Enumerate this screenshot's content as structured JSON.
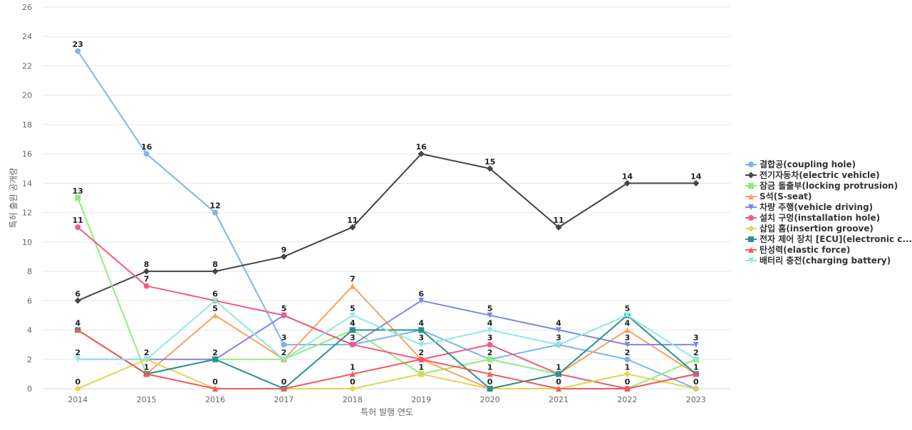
{
  "chart_data": {
    "type": "line",
    "title": "",
    "xlabel": "특허 발행 연도",
    "ylabel": "특허 출원 공개량",
    "ylim": [
      0,
      26
    ],
    "yticks": [
      0,
      2,
      4,
      6,
      8,
      10,
      12,
      14,
      16,
      18,
      20,
      22,
      24,
      26
    ],
    "categories": [
      "2014",
      "2015",
      "2016",
      "2017",
      "2018",
      "2019",
      "2020",
      "2021",
      "2022",
      "2023"
    ],
    "legend_position": "right",
    "series": [
      {
        "name": "결합공(coupling hole)",
        "color": "#7cb5ec",
        "marker": "circle",
        "values": [
          23,
          16,
          12,
          3,
          3,
          4,
          2,
          3,
          2,
          0
        ]
      },
      {
        "name": "전기자동차(electric vehicle)",
        "color": "#434348",
        "marker": "diamond",
        "values": [
          6,
          8,
          8,
          9,
          11,
          16,
          15,
          11,
          14,
          14
        ]
      },
      {
        "name": "잠금 돌출부(locking protrusion)",
        "color": "#90ed7d",
        "marker": "square",
        "values": [
          13,
          1,
          2,
          2,
          4,
          1,
          2,
          1,
          0,
          2
        ]
      },
      {
        "name": "S석(S-seat)",
        "color": "#f7a35c",
        "marker": "triangle",
        "values": [
          4,
          1,
          5,
          2,
          7,
          2,
          0,
          1,
          4,
          1
        ]
      },
      {
        "name": "차량 주행(vehicle driving)",
        "color": "#8085e9",
        "marker": "triangle-down",
        "values": [
          2,
          2,
          2,
          5,
          3,
          6,
          5,
          4,
          3,
          3
        ]
      },
      {
        "name": "설치 구멍(installation hole)",
        "color": "#f15c80",
        "marker": "circle",
        "values": [
          11,
          7,
          6,
          5,
          3,
          2,
          3,
          1,
          0,
          1
        ]
      },
      {
        "name": "삽입 홈(insertion groove)",
        "color": "#e4d354",
        "marker": "diamond",
        "values": [
          0,
          2,
          0,
          0,
          0,
          1,
          0,
          0,
          1,
          0
        ]
      },
      {
        "name": "전자 제어 장치 [ECU](electronic c...",
        "color": "#2b908f",
        "marker": "square",
        "values": [
          4,
          1,
          2,
          0,
          4,
          4,
          0,
          1,
          5,
          1
        ]
      },
      {
        "name": "탄성력(elastic force)",
        "color": "#f45b5b",
        "marker": "triangle",
        "values": [
          4,
          1,
          0,
          0,
          1,
          2,
          1,
          0,
          0,
          1
        ]
      },
      {
        "name": "배터리 충전(charging battery)",
        "color": "#91e8e1",
        "marker": "triangle-down",
        "values": [
          2,
          2,
          6,
          2,
          5,
          3,
          4,
          3,
          5,
          2
        ]
      }
    ],
    "data_labels": [
      {
        "text": "23",
        "x": "2014",
        "y": 23
      },
      {
        "text": "13",
        "x": "2014",
        "y": 13
      },
      {
        "text": "11",
        "x": "2014",
        "y": 11
      },
      {
        "text": "6",
        "x": "2014",
        "y": 6
      },
      {
        "text": "4",
        "x": "2014",
        "y": 4
      },
      {
        "text": "2",
        "x": "2014",
        "y": 2
      },
      {
        "text": "0",
        "x": "2014",
        "y": 0
      },
      {
        "text": "16",
        "x": "2015",
        "y": 16
      },
      {
        "text": "8",
        "x": "2015",
        "y": 8
      },
      {
        "text": "7",
        "x": "2015",
        "y": 7
      },
      {
        "text": "2",
        "x": "2015",
        "y": 2
      },
      {
        "text": "1",
        "x": "2015",
        "y": 1
      },
      {
        "text": "12",
        "x": "2016",
        "y": 12
      },
      {
        "text": "8",
        "x": "2016",
        "y": 8
      },
      {
        "text": "6",
        "x": "2016",
        "y": 6
      },
      {
        "text": "5",
        "x": "2016",
        "y": 5
      },
      {
        "text": "2",
        "x": "2016",
        "y": 2
      },
      {
        "text": "0",
        "x": "2016",
        "y": 0
      },
      {
        "text": "9",
        "x": "2017",
        "y": 9
      },
      {
        "text": "5",
        "x": "2017",
        "y": 5
      },
      {
        "text": "3",
        "x": "2017",
        "y": 3
      },
      {
        "text": "2",
        "x": "2017",
        "y": 2
      },
      {
        "text": "0",
        "x": "2017",
        "y": 0
      },
      {
        "text": "11",
        "x": "2018",
        "y": 11
      },
      {
        "text": "7",
        "x": "2018",
        "y": 7
      },
      {
        "text": "5",
        "x": "2018",
        "y": 5
      },
      {
        "text": "4",
        "x": "2018",
        "y": 4
      },
      {
        "text": "3",
        "x": "2018",
        "y": 3
      },
      {
        "text": "1",
        "x": "2018",
        "y": 1
      },
      {
        "text": "0",
        "x": "2018",
        "y": 0
      },
      {
        "text": "16",
        "x": "2019",
        "y": 16
      },
      {
        "text": "6",
        "x": "2019",
        "y": 6
      },
      {
        "text": "4",
        "x": "2019",
        "y": 4
      },
      {
        "text": "3",
        "x": "2019",
        "y": 3
      },
      {
        "text": "2",
        "x": "2019",
        "y": 2
      },
      {
        "text": "1",
        "x": "2019",
        "y": 1
      },
      {
        "text": "15",
        "x": "2020",
        "y": 15
      },
      {
        "text": "5",
        "x": "2020",
        "y": 5
      },
      {
        "text": "4",
        "x": "2020",
        "y": 4
      },
      {
        "text": "3",
        "x": "2020",
        "y": 3
      },
      {
        "text": "2",
        "x": "2020",
        "y": 2
      },
      {
        "text": "1",
        "x": "2020",
        "y": 1
      },
      {
        "text": "0",
        "x": "2020",
        "y": 0
      },
      {
        "text": "11",
        "x": "2021",
        "y": 11
      },
      {
        "text": "4",
        "x": "2021",
        "y": 4
      },
      {
        "text": "3",
        "x": "2021",
        "y": 3
      },
      {
        "text": "1",
        "x": "2021",
        "y": 1
      },
      {
        "text": "0",
        "x": "2021",
        "y": 0
      },
      {
        "text": "14",
        "x": "2022",
        "y": 14
      },
      {
        "text": "5",
        "x": "2022",
        "y": 5
      },
      {
        "text": "4",
        "x": "2022",
        "y": 4
      },
      {
        "text": "3",
        "x": "2022",
        "y": 3
      },
      {
        "text": "2",
        "x": "2022",
        "y": 2
      },
      {
        "text": "1",
        "x": "2022",
        "y": 1
      },
      {
        "text": "0",
        "x": "2022",
        "y": 0
      },
      {
        "text": "14",
        "x": "2023",
        "y": 14
      },
      {
        "text": "3",
        "x": "2023",
        "y": 3
      },
      {
        "text": "2",
        "x": "2023",
        "y": 2
      },
      {
        "text": "1",
        "x": "2023",
        "y": 1
      },
      {
        "text": "0",
        "x": "2023",
        "y": 0
      }
    ]
  }
}
